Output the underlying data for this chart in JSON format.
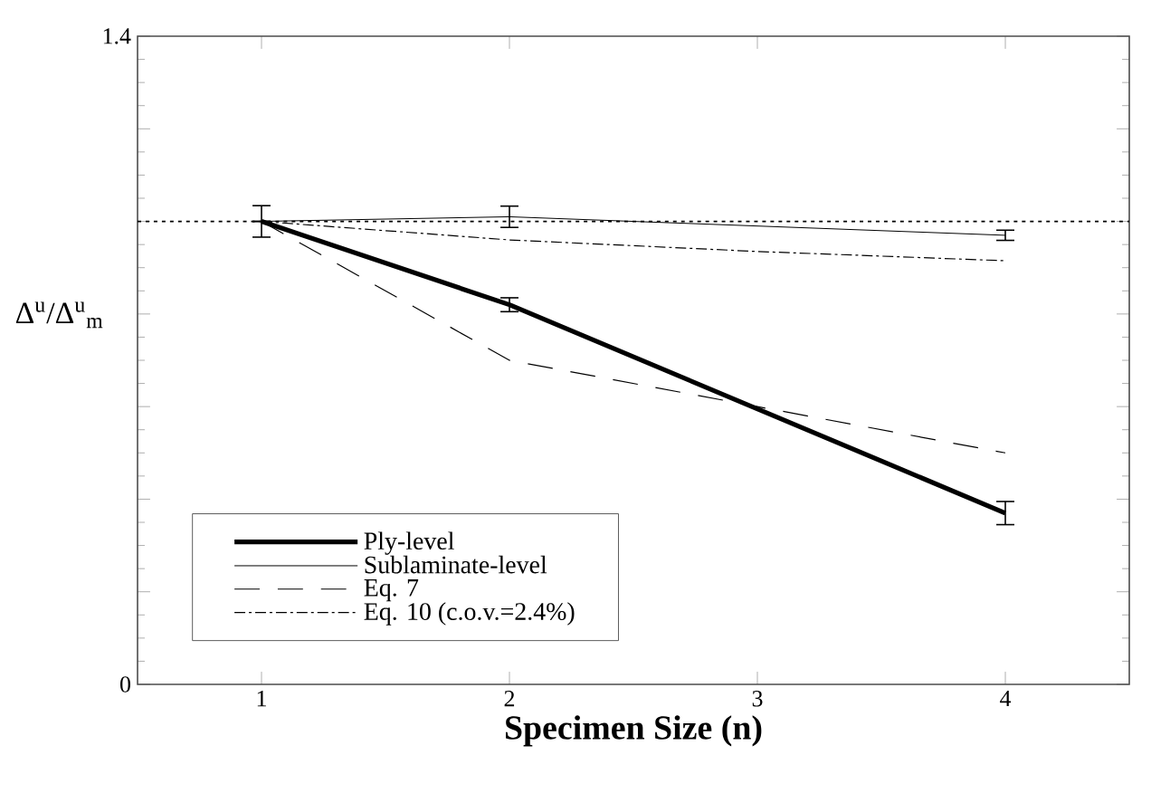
{
  "chart_data": {
    "type": "line",
    "xlabel": "Specimen Size (n)",
    "ylabel": "Δ$^{u}$/Δ$^{u}$$_{m}$",
    "xlim": [
      0.5,
      4.5
    ],
    "xticks": [
      1,
      2,
      3,
      4
    ],
    "ylim": [
      0,
      1.4
    ],
    "yticks": [
      0,
      {
        "value": 0.2,
        "label": null
      },
      {
        "value": 0.4,
        "label": null
      },
      {
        "value": 0.6,
        "label": null
      },
      {
        "value": 0.8,
        "label": null
      },
      {
        "value": 1.0,
        "label": null
      },
      {
        "value": 1.2,
        "label": null
      },
      1.4
    ],
    "series": [
      {
        "name": "Ply-level",
        "color": "#000000",
        "line_style": "solid",
        "x": [
          1,
          2,
          4
        ],
        "values": [
          1.0,
          0.82,
          0.37
        ],
        "errors": [
          0.034,
          0.015,
          0.025
        ]
      },
      {
        "name": "Sublaminate-level",
        "color": "#000000",
        "line_style": "solid",
        "x": [
          1,
          2,
          4
        ],
        "values": [
          1.0,
          1.01,
          0.97
        ],
        "errors": [
          null,
          0.023,
          0.011
        ]
      },
      {
        "name": "Eq. 7",
        "color": "#000000",
        "line_style": "dashed",
        "x": [
          1,
          2,
          3,
          4
        ],
        "values": [
          1.0,
          0.7,
          0.6,
          0.5
        ]
      },
      {
        "name": "Eq. 10 (c.o.v.=2.4%)",
        "color": "#000000",
        "line_style": "dotted",
        "x": [
          1,
          2,
          3,
          4
        ],
        "values": [
          1.0,
          0.96,
          0.935,
          0.915
        ]
      }
    ],
    "ref_lines": [
      {
        "axis": "y",
        "value": 1.0,
        "line_style": "dotted",
        "color": "#000000"
      }
    ],
    "legend": "bottom left",
    "grid": false,
    "marker": "none"
  }
}
